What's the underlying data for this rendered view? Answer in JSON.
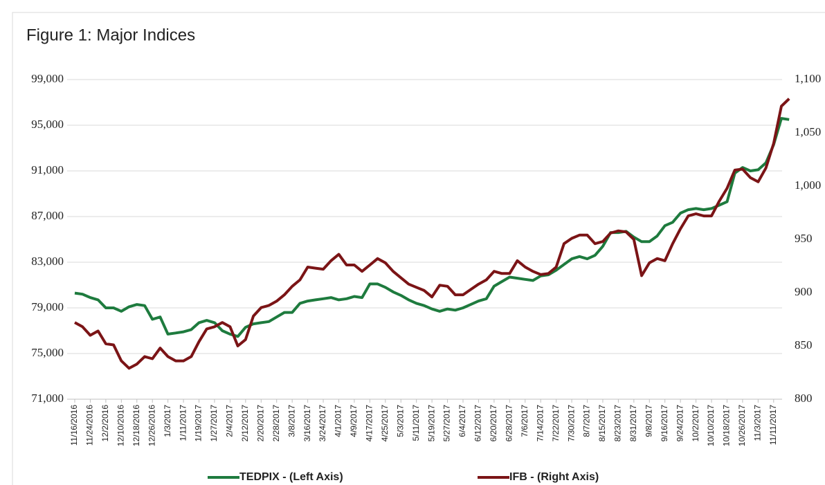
{
  "chart_data": {
    "type": "line",
    "title": "Figure 1: Major Indices",
    "categories": [
      "11/16/2016",
      null,
      "11/24/2016",
      null,
      "12/2/2016",
      null,
      "12/10/2016",
      null,
      "12/18/2016",
      null,
      "12/26/2016",
      null,
      "1/3/2017",
      null,
      "1/11/2017",
      null,
      "1/19/2017",
      null,
      "1/27/2017",
      null,
      "2/4/2017",
      null,
      "2/12/2017",
      null,
      "2/20/2017",
      null,
      "2/28/2017",
      null,
      "3/8/2017",
      null,
      "3/16/2017",
      null,
      "3/24/2017",
      null,
      "4/1/2017",
      null,
      "4/9/2017",
      null,
      "4/17/2017",
      null,
      "4/25/2017",
      null,
      "5/3/2017",
      null,
      "5/11/2017",
      null,
      "5/19/2017",
      null,
      "5/27/2017",
      null,
      "6/4/2017",
      null,
      "6/12/2017",
      null,
      "6/20/2017",
      null,
      "6/28/2017",
      null,
      "7/6/2017",
      null,
      "7/14/2017",
      null,
      "7/22/2017",
      null,
      "7/30/2017",
      null,
      "8/7/2017",
      null,
      "8/15/2017",
      null,
      "8/23/2017",
      null,
      "8/31/2017",
      null,
      "9/8/2017",
      null,
      "9/16/2017",
      null,
      "9/24/2017",
      null,
      "10/2/2017",
      null,
      "10/10/2017",
      null,
      "10/18/2017",
      null,
      "10/26/2017",
      null,
      "11/3/2017",
      null,
      "11/11/2017",
      null,
      null
    ],
    "series": [
      {
        "name": "TEDPIX - (Left Axis)",
        "color": "#1e7b3e",
        "values": [
          80300,
          80200,
          79900,
          79700,
          79000,
          79000,
          78700,
          79100,
          79300,
          79200,
          78000,
          78200,
          76700,
          76800,
          76900,
          77100,
          77700,
          77900,
          77700,
          77000,
          76700,
          76500,
          77300,
          77600,
          77700,
          77800,
          78200,
          78600,
          78600,
          79400,
          79600,
          79700,
          79800,
          79900,
          79700,
          79800,
          80000,
          79900,
          81100,
          81100,
          80800,
          80400,
          80100,
          79700,
          79400,
          79200,
          78900,
          78700,
          78900,
          78800,
          79000,
          79300,
          79600,
          79800,
          80900,
          81300,
          81700,
          81600,
          81500,
          81400,
          81800,
          81900,
          82300,
          82800,
          83300,
          83500,
          83300,
          83600,
          84400,
          85600,
          85600,
          85700,
          85200,
          84800,
          84800,
          85300,
          86200,
          86500,
          87300,
          87600,
          87700,
          87600,
          87700,
          88000,
          88300,
          90800,
          91300,
          91000,
          91100,
          91700,
          93300,
          95600,
          95500
        ]
      },
      {
        "name": "IFB - (Right Axis)",
        "color": "#7b1416",
        "axis": "y2",
        "values": [
          872,
          868,
          860,
          864,
          852,
          851,
          836,
          829,
          833,
          840,
          838,
          848,
          840,
          836,
          836,
          840,
          854,
          866,
          868,
          872,
          868,
          850,
          856,
          878,
          886,
          888,
          892,
          898,
          906,
          912,
          924,
          923,
          922,
          930,
          936,
          926,
          926,
          920,
          926,
          932,
          928,
          920,
          914,
          908,
          905,
          902,
          896,
          907,
          906,
          898,
          898,
          903,
          908,
          912,
          920,
          918,
          918,
          930,
          924,
          920,
          917,
          918,
          924,
          946,
          951,
          954,
          954,
          946,
          948,
          956,
          958,
          957,
          950,
          916,
          928,
          932,
          930,
          946,
          960,
          972,
          974,
          972,
          972,
          986,
          998,
          1015,
          1016,
          1008,
          1004,
          1017,
          1040,
          1075,
          1082
        ]
      }
    ],
    "ylim": [
      71000,
      99000
    ],
    "yticks": [
      {
        "value": 71000,
        "label": "71,000"
      },
      {
        "value": 75000,
        "label": "75,000"
      },
      {
        "value": 79000,
        "label": "79,000"
      },
      {
        "value": 83000,
        "label": "83,000"
      },
      {
        "value": 87000,
        "label": "87,000"
      },
      {
        "value": 91000,
        "label": "91,000"
      },
      {
        "value": 95000,
        "label": "95,000"
      },
      {
        "value": 99000,
        "label": "99,000"
      }
    ],
    "y2lim": [
      800,
      1100
    ],
    "y2ticks": [
      800,
      850,
      900,
      950,
      {
        "value": 1000,
        "label": "1,000"
      },
      {
        "value": 1050,
        "label": "1,050"
      },
      {
        "value": 1100,
        "label": "1,100"
      }
    ],
    "grid": true,
    "legend": "bottom"
  }
}
